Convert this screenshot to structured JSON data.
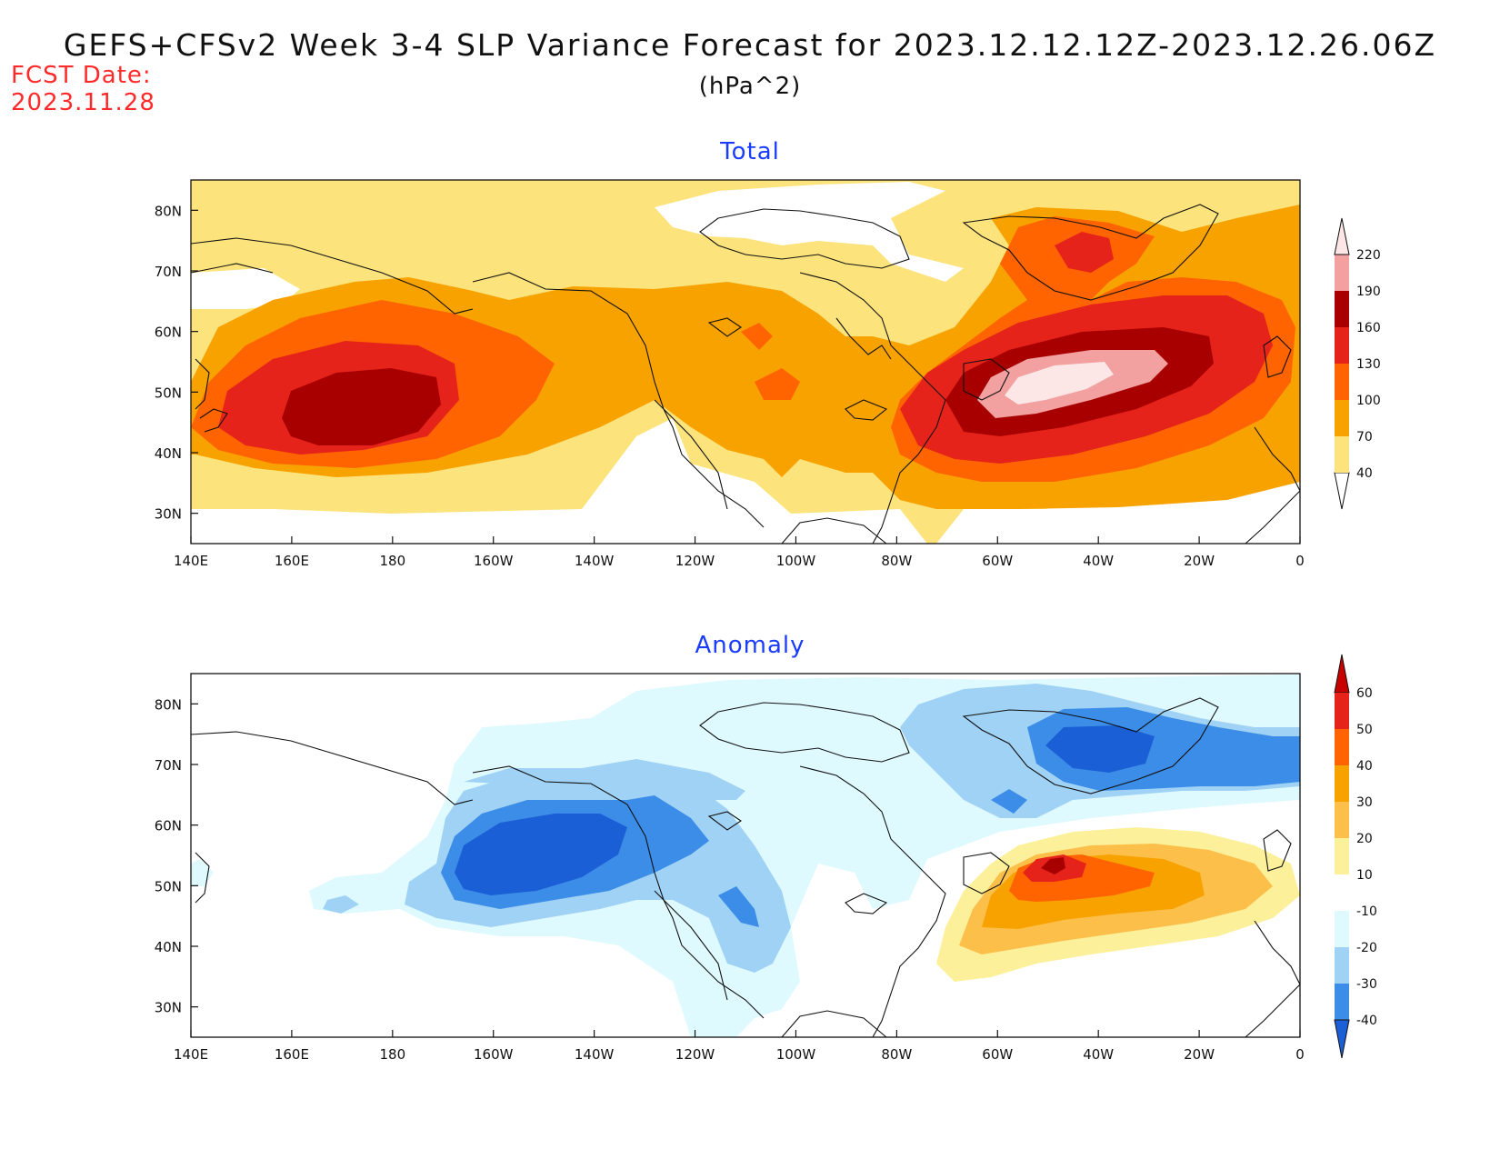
{
  "title": "GEFS+CFSv2 Week 3-4 SLP Variance Forecast for 2023.12.12.12Z-2023.12.26.06Z",
  "units": "(hPa^2)",
  "fcst_label": "FCST Date:",
  "fcst_date": "2023.11.28",
  "panels": [
    {
      "title": "Total",
      "x_ticks": [
        "140E",
        "160E",
        "180",
        "160W",
        "140W",
        "120W",
        "100W",
        "80W",
        "60W",
        "40W",
        "20W",
        "0"
      ],
      "y_ticks": [
        "30N",
        "40N",
        "50N",
        "60N",
        "70N",
        "80N"
      ],
      "colorbar": {
        "levels": [
          "40",
          "70",
          "100",
          "130",
          "160",
          "190",
          "220"
        ],
        "colors": [
          "#fce37c",
          "#f8a200",
          "#ff6400",
          "#e6231a",
          "#a80000",
          "#f2a0a0",
          "#fde6e6"
        ]
      }
    },
    {
      "title": "Anomaly",
      "x_ticks": [
        "140E",
        "160E",
        "180",
        "160W",
        "140W",
        "120W",
        "100W",
        "80W",
        "60W",
        "40W",
        "20W",
        "0"
      ],
      "y_ticks": [
        "30N",
        "40N",
        "50N",
        "60N",
        "70N",
        "80N"
      ],
      "colorbar": {
        "levels": [
          "60",
          "50",
          "40",
          "30",
          "20",
          "10",
          "-10",
          "-20",
          "-30",
          "-40"
        ],
        "colors": [
          "#c80000",
          "#e6231a",
          "#ff6400",
          "#f8a200",
          "#fcc04a",
          "#fdf09a",
          "#ffffff",
          "#dffaff",
          "#9fd2f5",
          "#3b8de8",
          "#1b5fd6"
        ]
      }
    }
  ],
  "chart_data": {
    "type": "heatmap",
    "x_range": [
      "140E",
      "0"
    ],
    "y_range": [
      "25N",
      "85N"
    ]
  }
}
